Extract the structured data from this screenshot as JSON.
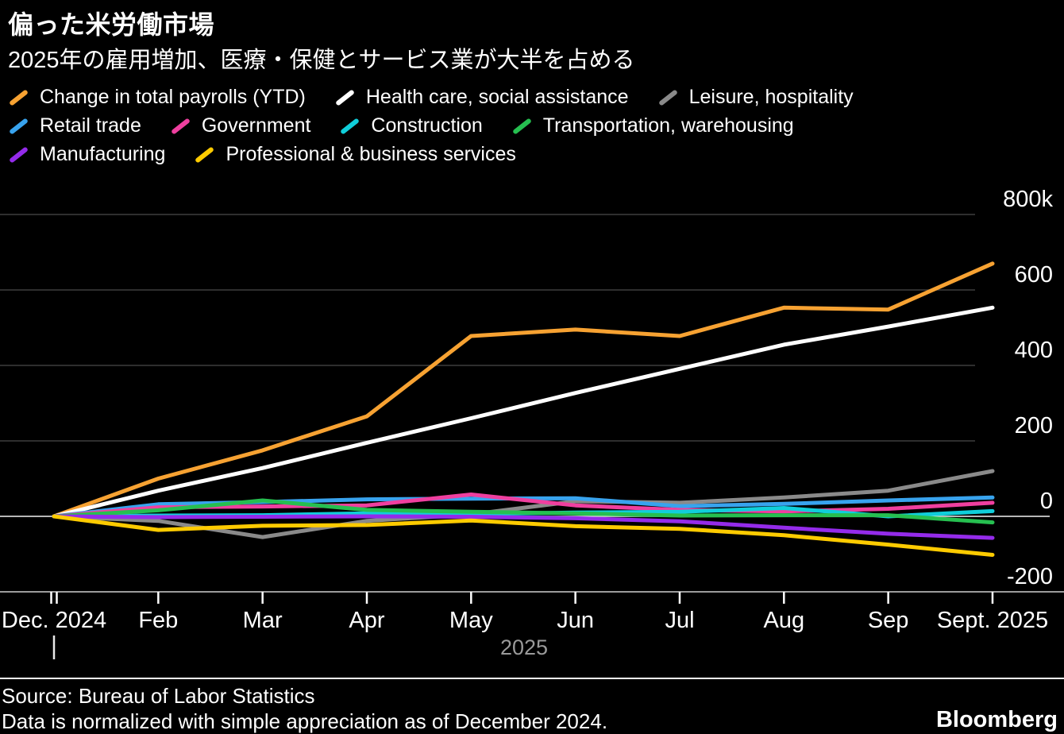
{
  "header": {
    "title": "偏った米労働市場",
    "subtitle": "2025年の雇用増加、医療・保健とサービス業が大半を占める"
  },
  "legend": [
    {
      "label": "Change in total payrolls (YTD)",
      "color": "#F7A232",
      "row": 0
    },
    {
      "label": "Health care, social assistance",
      "color": "#FFFFFF",
      "row": 0
    },
    {
      "label": "Leisure, hospitality",
      "color": "#8A8A8A",
      "row": 0
    },
    {
      "label": "Retail trade",
      "color": "#38A3EE",
      "row": 1
    },
    {
      "label": "Government",
      "color": "#EF3F9F",
      "row": 1
    },
    {
      "label": "Construction",
      "color": "#10CEDA",
      "row": 1
    },
    {
      "label": "Transportation, warehousing",
      "color": "#26BF50",
      "row": 1
    },
    {
      "label": "Manufacturing",
      "color": "#942BEA",
      "row": 2
    },
    {
      "label": "Professional & business services",
      "color": "#FECB00",
      "row": 2
    }
  ],
  "chart_data": {
    "type": "line",
    "unit": "thousands of jobs",
    "x_labels": [
      "Dec. 2024",
      "Feb",
      "Mar",
      "Apr",
      "May",
      "Jun",
      "Jul",
      "Aug",
      "Sep",
      "Sept. 2025"
    ],
    "x_axis_year_note": "2025",
    "y_ticks": [
      {
        "label": "800k",
        "value": 800
      },
      {
        "label": "600",
        "value": 600
      },
      {
        "label": "400",
        "value": 400
      },
      {
        "label": "200",
        "value": 200
      },
      {
        "label": "0",
        "value": 0
      },
      {
        "label": "-200",
        "value": -200
      }
    ],
    "ylim": [
      -200,
      800
    ],
    "grid": true,
    "legend_position": "top",
    "series": [
      {
        "name": "Change in total payrolls (YTD)",
        "color": "#F7A232",
        "values": [
          0,
          100,
          175,
          265,
          478,
          495,
          478,
          553,
          548,
          670
        ]
      },
      {
        "name": "Health care, social assistance",
        "color": "#FFFFFF",
        "values": [
          0,
          68,
          128,
          195,
          260,
          327,
          391,
          455,
          503,
          553
        ]
      },
      {
        "name": "Leisure, hospitality",
        "color": "#8A8A8A",
        "values": [
          0,
          -12,
          -55,
          -12,
          5,
          40,
          36,
          50,
          68,
          120
        ]
      },
      {
        "name": "Retail trade",
        "color": "#38A3EE",
        "values": [
          0,
          32,
          38,
          45,
          47,
          48,
          27,
          33,
          42,
          50
        ]
      },
      {
        "name": "Government",
        "color": "#EF3F9F",
        "values": [
          0,
          24,
          26,
          29,
          58,
          29,
          17,
          13,
          20,
          36
        ]
      },
      {
        "name": "Construction",
        "color": "#10CEDA",
        "values": [
          0,
          2,
          3,
          8,
          6,
          10,
          12,
          22,
          0,
          14
        ]
      },
      {
        "name": "Transportation, warehousing",
        "color": "#26BF50",
        "values": [
          0,
          16,
          42,
          17,
          12,
          8,
          2,
          3,
          3,
          -16
        ]
      },
      {
        "name": "Manufacturing",
        "color": "#942BEA",
        "values": [
          0,
          -2,
          -1,
          0,
          -1,
          -5,
          -13,
          -30,
          -46,
          -57
        ]
      },
      {
        "name": "Professional & business services",
        "color": "#FECB00",
        "values": [
          0,
          -36,
          -25,
          -23,
          -11,
          -26,
          -33,
          -50,
          -75,
          -102
        ]
      }
    ]
  },
  "footer": {
    "source_line1": "Source: Bureau of Labor Statistics",
    "source_line2": "Data is normalized with simple appreciation as of December 2024.",
    "brand": "Bloomberg"
  }
}
